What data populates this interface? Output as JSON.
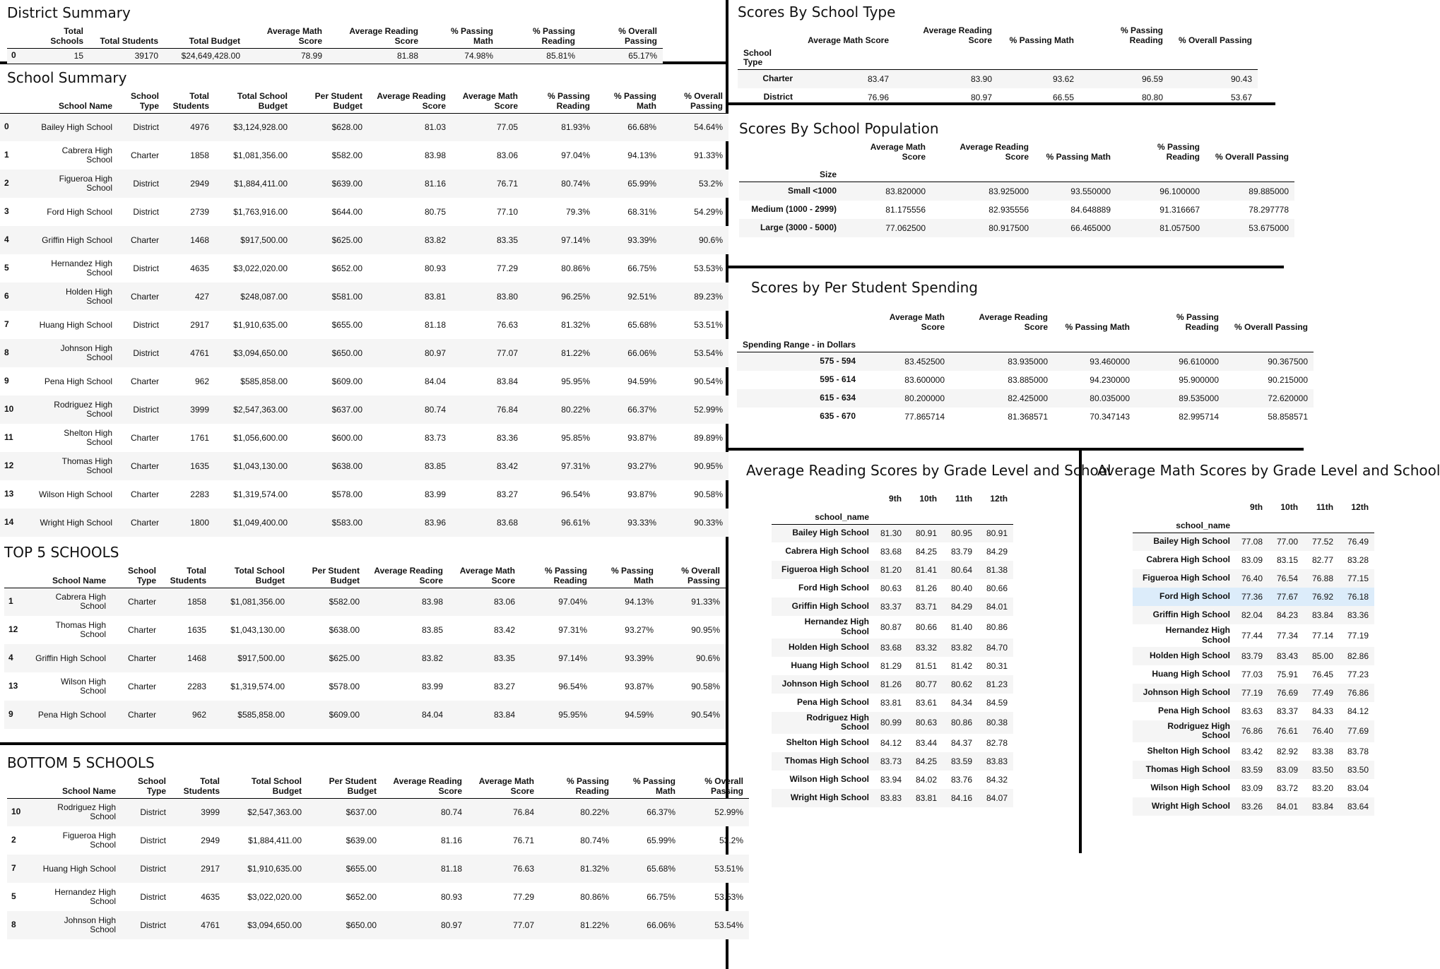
{
  "district_summary": {
    "title": "District Summary",
    "columns": [
      "Total Schools",
      "Total Students",
      "Total Budget",
      "Average Math Score",
      "Average Reading Score",
      "% Passing Math",
      "% Passing Reading",
      "% Overall Passing"
    ],
    "rows": [
      [
        "0",
        "15",
        "39170",
        "$24,649,428.00",
        "78.99",
        "81.88",
        "74.98%",
        "85.81%",
        "65.17%"
      ]
    ]
  },
  "school_summary": {
    "title": "School Summary",
    "columns": [
      "School Name",
      "School Type",
      "Total Students",
      "Total School Budget",
      "Per Student Budget",
      "Average Reading Score",
      "Average Math Score",
      "% Passing Reading",
      "% Passing Math",
      "% Overall Passing"
    ],
    "rows": [
      [
        "0",
        "Bailey High School",
        "District",
        "4976",
        "$3,124,928.00",
        "$628.00",
        "81.03",
        "77.05",
        "81.93%",
        "66.68%",
        "54.64%"
      ],
      [
        "1",
        "Cabrera High School",
        "Charter",
        "1858",
        "$1,081,356.00",
        "$582.00",
        "83.98",
        "83.06",
        "97.04%",
        "94.13%",
        "91.33%"
      ],
      [
        "2",
        "Figueroa High School",
        "District",
        "2949",
        "$1,884,411.00",
        "$639.00",
        "81.16",
        "76.71",
        "80.74%",
        "65.99%",
        "53.2%"
      ],
      [
        "3",
        "Ford High School",
        "District",
        "2739",
        "$1,763,916.00",
        "$644.00",
        "80.75",
        "77.10",
        "79.3%",
        "68.31%",
        "54.29%"
      ],
      [
        "4",
        "Griffin High School",
        "Charter",
        "1468",
        "$917,500.00",
        "$625.00",
        "83.82",
        "83.35",
        "97.14%",
        "93.39%",
        "90.6%"
      ],
      [
        "5",
        "Hernandez High School",
        "District",
        "4635",
        "$3,022,020.00",
        "$652.00",
        "80.93",
        "77.29",
        "80.86%",
        "66.75%",
        "53.53%"
      ],
      [
        "6",
        "Holden High School",
        "Charter",
        "427",
        "$248,087.00",
        "$581.00",
        "83.81",
        "83.80",
        "96.25%",
        "92.51%",
        "89.23%"
      ],
      [
        "7",
        "Huang High School",
        "District",
        "2917",
        "$1,910,635.00",
        "$655.00",
        "81.18",
        "76.63",
        "81.32%",
        "65.68%",
        "53.51%"
      ],
      [
        "8",
        "Johnson High School",
        "District",
        "4761",
        "$3,094,650.00",
        "$650.00",
        "80.97",
        "77.07",
        "81.22%",
        "66.06%",
        "53.54%"
      ],
      [
        "9",
        "Pena High School",
        "Charter",
        "962",
        "$585,858.00",
        "$609.00",
        "84.04",
        "83.84",
        "95.95%",
        "94.59%",
        "90.54%"
      ],
      [
        "10",
        "Rodriguez High School",
        "District",
        "3999",
        "$2,547,363.00",
        "$637.00",
        "80.74",
        "76.84",
        "80.22%",
        "66.37%",
        "52.99%"
      ],
      [
        "11",
        "Shelton High School",
        "Charter",
        "1761",
        "$1,056,600.00",
        "$600.00",
        "83.73",
        "83.36",
        "95.85%",
        "93.87%",
        "89.89%"
      ],
      [
        "12",
        "Thomas High School",
        "Charter",
        "1635",
        "$1,043,130.00",
        "$638.00",
        "83.85",
        "83.42",
        "97.31%",
        "93.27%",
        "90.95%"
      ],
      [
        "13",
        "Wilson High School",
        "Charter",
        "2283",
        "$1,319,574.00",
        "$578.00",
        "83.99",
        "83.27",
        "96.54%",
        "93.87%",
        "90.58%"
      ],
      [
        "14",
        "Wright High School",
        "Charter",
        "1800",
        "$1,049,400.00",
        "$583.00",
        "83.96",
        "83.68",
        "96.61%",
        "93.33%",
        "90.33%"
      ]
    ]
  },
  "top5": {
    "title": "TOP 5 SCHOOLS",
    "columns": [
      "School Name",
      "School Type",
      "Total Students",
      "Total School Budget",
      "Per Student Budget",
      "Average Reading Score",
      "Average Math Score",
      "% Passing Reading",
      "% Passing Math",
      "% Overall Passing"
    ],
    "rows": [
      [
        "1",
        "Cabrera High School",
        "Charter",
        "1858",
        "$1,081,356.00",
        "$582.00",
        "83.98",
        "83.06",
        "97.04%",
        "94.13%",
        "91.33%"
      ],
      [
        "12",
        "Thomas High School",
        "Charter",
        "1635",
        "$1,043,130.00",
        "$638.00",
        "83.85",
        "83.42",
        "97.31%",
        "93.27%",
        "90.95%"
      ],
      [
        "4",
        "Griffin High School",
        "Charter",
        "1468",
        "$917,500.00",
        "$625.00",
        "83.82",
        "83.35",
        "97.14%",
        "93.39%",
        "90.6%"
      ],
      [
        "13",
        "Wilson High School",
        "Charter",
        "2283",
        "$1,319,574.00",
        "$578.00",
        "83.99",
        "83.27",
        "96.54%",
        "93.87%",
        "90.58%"
      ],
      [
        "9",
        "Pena High School",
        "Charter",
        "962",
        "$585,858.00",
        "$609.00",
        "84.04",
        "83.84",
        "95.95%",
        "94.59%",
        "90.54%"
      ]
    ]
  },
  "bottom5": {
    "title": "BOTTOM 5 SCHOOLS",
    "columns": [
      "School Name",
      "School Type",
      "Total Students",
      "Total School Budget",
      "Per Student Budget",
      "Average Reading Score",
      "Average Math Score",
      "% Passing Reading",
      "% Passing Math",
      "% Overall Passing"
    ],
    "rows": [
      [
        "10",
        "Rodriguez High School",
        "District",
        "3999",
        "$2,547,363.00",
        "$637.00",
        "80.74",
        "76.84",
        "80.22%",
        "66.37%",
        "52.99%"
      ],
      [
        "2",
        "Figueroa High School",
        "District",
        "2949",
        "$1,884,411.00",
        "$639.00",
        "81.16",
        "76.71",
        "80.74%",
        "65.99%",
        "53.2%"
      ],
      [
        "7",
        "Huang High School",
        "District",
        "2917",
        "$1,910,635.00",
        "$655.00",
        "81.18",
        "76.63",
        "81.32%",
        "65.68%",
        "53.51%"
      ],
      [
        "5",
        "Hernandez High School",
        "District",
        "4635",
        "$3,022,020.00",
        "$652.00",
        "80.93",
        "77.29",
        "80.86%",
        "66.75%",
        "53.53%"
      ],
      [
        "8",
        "Johnson High School",
        "District",
        "4761",
        "$3,094,650.00",
        "$650.00",
        "80.97",
        "77.07",
        "81.22%",
        "66.06%",
        "53.54%"
      ]
    ]
  },
  "by_type": {
    "title": "Scores By School Type",
    "columns": [
      "Average Math Score",
      "Average Reading Score",
      "% Passing Math",
      "% Passing Reading",
      "% Overall Passing"
    ],
    "index_name": "School Type",
    "rows": [
      [
        "Charter",
        "83.47",
        "83.90",
        "93.62",
        "96.59",
        "90.43"
      ],
      [
        "District",
        "76.96",
        "80.97",
        "66.55",
        "80.80",
        "53.67"
      ]
    ]
  },
  "by_population": {
    "title": "Scores By School Population",
    "columns": [
      "Average Math Score",
      "Average Reading Score",
      "% Passing Math",
      "% Passing Reading",
      "% Overall Passing"
    ],
    "index_name": "Size",
    "rows": [
      [
        "Small <1000",
        "83.820000",
        "83.925000",
        "93.550000",
        "96.100000",
        "89.885000"
      ],
      [
        "Medium (1000 - 2999)",
        "81.175556",
        "82.935556",
        "84.648889",
        "91.316667",
        "78.297778"
      ],
      [
        "Large (3000 - 5000)",
        "77.062500",
        "80.917500",
        "66.465000",
        "81.057500",
        "53.675000"
      ]
    ]
  },
  "by_spending": {
    "title": "Scores by Per Student Spending",
    "columns": [
      "Average Math Score",
      "Average Reading Score",
      "% Passing Math",
      "% Passing Reading",
      "% Overall Passing"
    ],
    "index_name": "Spending Range - in Dollars",
    "rows": [
      [
        "575 - 594",
        "83.452500",
        "83.935000",
        "93.460000",
        "96.610000",
        "90.367500"
      ],
      [
        "595 - 614",
        "83.600000",
        "83.885000",
        "94.230000",
        "95.900000",
        "90.215000"
      ],
      [
        "615 - 634",
        "80.200000",
        "82.425000",
        "80.035000",
        "89.535000",
        "72.620000"
      ],
      [
        "635 - 670",
        "77.865714",
        "81.368571",
        "70.347143",
        "82.995714",
        "58.858571"
      ]
    ]
  },
  "reading_grade": {
    "title": "Average Reading Scores by Grade Level and School",
    "columns": [
      "9th",
      "10th",
      "11th",
      "12th"
    ],
    "index_name": "school_name",
    "rows": [
      [
        "Bailey High School",
        "81.30",
        "80.91",
        "80.95",
        "80.91"
      ],
      [
        "Cabrera High School",
        "83.68",
        "84.25",
        "83.79",
        "84.29"
      ],
      [
        "Figueroa High School",
        "81.20",
        "81.41",
        "80.64",
        "81.38"
      ],
      [
        "Ford High School",
        "80.63",
        "81.26",
        "80.40",
        "80.66"
      ],
      [
        "Griffin High School",
        "83.37",
        "83.71",
        "84.29",
        "84.01"
      ],
      [
        "Hernandez High School",
        "80.87",
        "80.66",
        "81.40",
        "80.86"
      ],
      [
        "Holden High School",
        "83.68",
        "83.32",
        "83.82",
        "84.70"
      ],
      [
        "Huang High School",
        "81.29",
        "81.51",
        "81.42",
        "80.31"
      ],
      [
        "Johnson High School",
        "81.26",
        "80.77",
        "80.62",
        "81.23"
      ],
      [
        "Pena High School",
        "83.81",
        "83.61",
        "84.34",
        "84.59"
      ],
      [
        "Rodriguez High School",
        "80.99",
        "80.63",
        "80.86",
        "80.38"
      ],
      [
        "Shelton High School",
        "84.12",
        "83.44",
        "84.37",
        "82.78"
      ],
      [
        "Thomas High School",
        "83.73",
        "84.25",
        "83.59",
        "83.83"
      ],
      [
        "Wilson High School",
        "83.94",
        "84.02",
        "83.76",
        "84.32"
      ],
      [
        "Wright High School",
        "83.83",
        "83.81",
        "84.16",
        "84.07"
      ]
    ]
  },
  "math_grade": {
    "title": "Average Math Scores by Grade Level and School",
    "columns": [
      "9th",
      "10th",
      "11th",
      "12th"
    ],
    "index_name": "school_name",
    "highlight_row": 3,
    "rows": [
      [
        "Bailey High School",
        "77.08",
        "77.00",
        "77.52",
        "76.49"
      ],
      [
        "Cabrera High School",
        "83.09",
        "83.15",
        "82.77",
        "83.28"
      ],
      [
        "Figueroa High School",
        "76.40",
        "76.54",
        "76.88",
        "77.15"
      ],
      [
        "Ford High School",
        "77.36",
        "77.67",
        "76.92",
        "76.18"
      ],
      [
        "Griffin High School",
        "82.04",
        "84.23",
        "83.84",
        "83.36"
      ],
      [
        "Hernandez High School",
        "77.44",
        "77.34",
        "77.14",
        "77.19"
      ],
      [
        "Holden High School",
        "83.79",
        "83.43",
        "85.00",
        "82.86"
      ],
      [
        "Huang High School",
        "77.03",
        "75.91",
        "76.45",
        "77.23"
      ],
      [
        "Johnson High School",
        "77.19",
        "76.69",
        "77.49",
        "76.86"
      ],
      [
        "Pena High School",
        "83.63",
        "83.37",
        "84.33",
        "84.12"
      ],
      [
        "Rodriguez High School",
        "76.86",
        "76.61",
        "76.40",
        "77.69"
      ],
      [
        "Shelton High School",
        "83.42",
        "82.92",
        "83.38",
        "83.78"
      ],
      [
        "Thomas High School",
        "83.59",
        "83.09",
        "83.50",
        "83.50"
      ],
      [
        "Wilson High School",
        "83.09",
        "83.72",
        "83.20",
        "83.04"
      ],
      [
        "Wright High School",
        "83.26",
        "84.01",
        "83.84",
        "83.64"
      ]
    ]
  }
}
